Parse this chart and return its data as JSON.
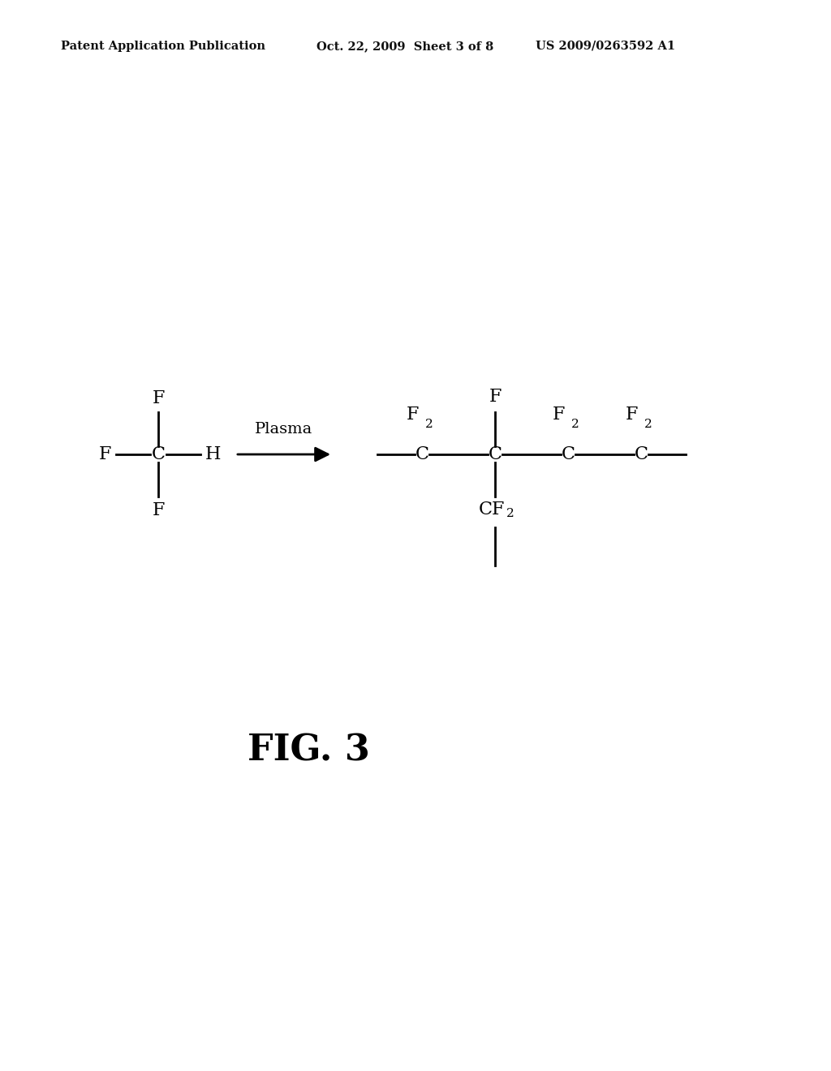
{
  "bg_color": "#ffffff",
  "header_left": "Patent Application Publication",
  "header_mid": "Oct. 22, 2009  Sheet 3 of 8",
  "header_right": "US 2009/0263592 A1",
  "header_fontsize": 10.5,
  "fig_label": "FIG. 3",
  "fig_label_fontsize": 32,
  "reaction_label": "Plasma",
  "reaction_label_fontsize": 14
}
